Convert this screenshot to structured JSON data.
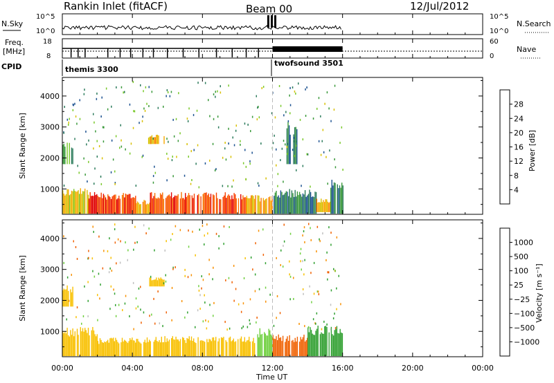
{
  "header": {
    "title": "Rankin Inlet (fitACF)",
    "beam": "Beam 00",
    "date": "12/Jul/2012"
  },
  "nsky_panel": {
    "left_label": "N.Sky",
    "left_ticks": [
      "10^5",
      "10^0"
    ],
    "right_ticks": [
      "10^5",
      "10^0"
    ],
    "right_label": "N.Search"
  },
  "freq_panel": {
    "left_label_1": "Freq.",
    "left_label_2": "[MHz]",
    "left_ticks": [
      "18",
      "8"
    ],
    "right_ticks": [
      "60",
      "0"
    ],
    "right_label": "Nave"
  },
  "cpid": {
    "label": "CPID",
    "modes": [
      {
        "name": "themis 3300",
        "start_hour": 0
      },
      {
        "name": "twofsound 3501",
        "start_hour": 12
      }
    ]
  },
  "time_axis": {
    "label": "Time UT",
    "ticks": [
      "00:00",
      "04:00",
      "08:00",
      "12:00",
      "16:00",
      "20:00",
      "00:00"
    ],
    "tick_hours": [
      0,
      4,
      8,
      12,
      16,
      20,
      24
    ]
  },
  "power_colorbar": {
    "label": "Power [dB]",
    "ticks": [
      "28",
      "24",
      "20",
      "16",
      "12",
      "8",
      "4"
    ],
    "colors": [
      "#e00000",
      "#f84000",
      "#f87000",
      "#f8a800",
      "#d8c000",
      "#78c828",
      "#389838",
      "#2a7a5a",
      "#1a5090",
      "#0a20d0"
    ]
  },
  "velocity_colorbar": {
    "label": "Velocity [m s⁻¹]",
    "ticks": [
      "1000",
      "500",
      "100",
      "25",
      "−25",
      "−100",
      "−500",
      "−1000"
    ],
    "colors": [
      "#2828c8",
      "#1e5aa0",
      "#1a7a5a",
      "#30a030",
      "#70d040",
      "#c0c0c0",
      "#f8c000",
      "#f89000",
      "#f06000",
      "#e82000",
      "#e00000"
    ]
  },
  "chart_data": [
    {
      "type": "heatmap",
      "title": "Power",
      "xlabel": "Time UT",
      "ylabel": "Slant Range [km]",
      "xlim_hours": [
        0,
        24
      ],
      "ylim_km": [
        180,
        4600
      ],
      "yticks": [
        1000,
        2000,
        3000,
        4000
      ],
      "data_end_hour": 16,
      "colorbar": "Power [dB]",
      "bands": [
        {
          "t0": 0.0,
          "t1": 1.5,
          "r0": 200,
          "r1": 1050,
          "value_db": 18
        },
        {
          "t0": 1.5,
          "t1": 4.2,
          "r0": 200,
          "r1": 900,
          "value_db": 28
        },
        {
          "t0": 4.2,
          "t1": 5.0,
          "r0": 200,
          "r1": 650,
          "value_db": 20
        },
        {
          "t0": 5.0,
          "t1": 7.0,
          "r0": 200,
          "r1": 900,
          "value_db": 26
        },
        {
          "t0": 7.0,
          "t1": 10.5,
          "r0": 200,
          "r1": 900,
          "value_db": 27
        },
        {
          "t0": 10.5,
          "t1": 12.0,
          "r0": 200,
          "r1": 800,
          "value_db": 20
        },
        {
          "t0": 12.0,
          "t1": 14.5,
          "r0": 200,
          "r1": 1000,
          "value_db": 8
        },
        {
          "t0": 14.5,
          "t1": 15.3,
          "r0": 250,
          "r1": 700,
          "value_db": 20
        },
        {
          "t0": 15.3,
          "t1": 16.0,
          "r0": 200,
          "r1": 1300,
          "value_db": 10
        },
        {
          "t0": 0.0,
          "t1": 0.6,
          "r0": 1800,
          "r1": 2500,
          "value_db": 12
        },
        {
          "t0": 4.9,
          "t1": 5.8,
          "r0": 2450,
          "r1": 2750,
          "value_db": 20
        },
        {
          "t0": 12.8,
          "t1": 13.4,
          "r0": 1800,
          "r1": 3200,
          "value_db": 8
        }
      ]
    },
    {
      "type": "heatmap",
      "title": "Velocity",
      "xlabel": "Time UT",
      "ylabel": "Slant Range [km]",
      "xlim_hours": [
        0,
        24
      ],
      "ylim_km": [
        180,
        4600
      ],
      "yticks": [
        1000,
        2000,
        3000,
        4000
      ],
      "data_end_hour": 16,
      "colorbar": "Velocity [m s⁻¹]",
      "bands": [
        {
          "t0": 0.0,
          "t1": 2.0,
          "r0": 200,
          "r1": 1150,
          "value_ms": 0
        },
        {
          "t0": 2.0,
          "t1": 4.5,
          "r0": 200,
          "r1": 800,
          "value_ms": 20
        },
        {
          "t0": 4.5,
          "t1": 11.0,
          "r0": 200,
          "r1": 850,
          "value_ms": 10
        },
        {
          "t0": 11.0,
          "t1": 12.0,
          "r0": 200,
          "r1": 1100,
          "value_ms": 60
        },
        {
          "t0": 12.0,
          "t1": 14.0,
          "r0": 200,
          "r1": 900,
          "value_ms": -150
        },
        {
          "t0": 14.0,
          "t1": 16.0,
          "r0": 200,
          "r1": 1200,
          "value_ms": 150
        },
        {
          "t0": 0.0,
          "t1": 0.6,
          "r0": 1800,
          "r1": 2500,
          "value_ms": 0
        },
        {
          "t0": 4.9,
          "t1": 5.8,
          "r0": 2450,
          "r1": 2750,
          "value_ms": 0
        }
      ]
    }
  ]
}
